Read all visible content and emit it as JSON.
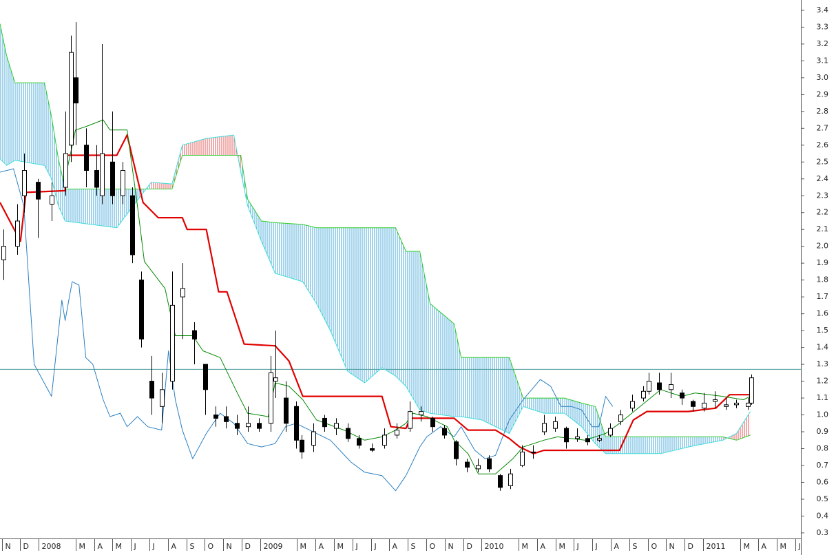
{
  "chart_data": {
    "type": "candlestick",
    "xlim": [
      -0.1,
      43.3
    ],
    "ylim": [
      0.267,
      3.461
    ],
    "xticks": [
      {
        "value": 0,
        "label": "N"
      },
      {
        "value": 1,
        "label": "D"
      },
      {
        "value": 2,
        "label": "2008"
      },
      {
        "value": 4,
        "label": "M"
      },
      {
        "value": 5,
        "label": "A"
      },
      {
        "value": 6,
        "label": "M"
      },
      {
        "value": 7,
        "label": "J"
      },
      {
        "value": 8,
        "label": "J"
      },
      {
        "value": 9,
        "label": "A"
      },
      {
        "value": 10,
        "label": "S"
      },
      {
        "value": 11,
        "label": "O"
      },
      {
        "value": 12,
        "label": "N"
      },
      {
        "value": 13,
        "label": "D"
      },
      {
        "value": 14,
        "label": "2009"
      },
      {
        "value": 16,
        "label": "M"
      },
      {
        "value": 17,
        "label": "A"
      },
      {
        "value": 18,
        "label": "M"
      },
      {
        "value": 19,
        "label": "J"
      },
      {
        "value": 20,
        "label": "J"
      },
      {
        "value": 21,
        "label": "A"
      },
      {
        "value": 22,
        "label": "S"
      },
      {
        "value": 23,
        "label": "O"
      },
      {
        "value": 24,
        "label": "N"
      },
      {
        "value": 25,
        "label": "D"
      },
      {
        "value": 26,
        "label": "2010"
      },
      {
        "value": 28,
        "label": "M"
      },
      {
        "value": 29,
        "label": "A"
      },
      {
        "value": 30,
        "label": "M"
      },
      {
        "value": 31,
        "label": "J"
      },
      {
        "value": 32,
        "label": "J"
      },
      {
        "value": 33,
        "label": "A"
      },
      {
        "value": 34,
        "label": "S"
      },
      {
        "value": 35,
        "label": "O"
      },
      {
        "value": 36,
        "label": "N"
      },
      {
        "value": 37,
        "label": "D"
      },
      {
        "value": 38,
        "label": "2011"
      },
      {
        "value": 40,
        "label": "M"
      },
      {
        "value": 41,
        "label": "A"
      },
      {
        "value": 42,
        "label": "M"
      },
      {
        "value": 43,
        "label": "J"
      }
    ],
    "yticks": [
      0.3,
      0.4,
      0.5,
      0.6,
      0.7,
      0.8,
      0.9,
      {
        "value": 1,
        "label": "1.0"
      },
      1.1,
      1.2,
      1.3,
      1.4,
      1.5,
      1.6,
      1.7,
      1.8,
      1.9,
      {
        "value": 2,
        "label": "2.0"
      },
      2.1,
      2.2,
      2.3,
      2.4,
      2.5,
      2.6,
      2.7,
      2.8,
      2.9,
      {
        "value": 3,
        "label": "3.0"
      },
      3.1,
      3.2,
      3.3,
      3.4
    ],
    "hline": {
      "value": 1.27,
      "color": "#4a9a9a"
    },
    "cloud": {
      "bull_color": "#4aa8d8",
      "bear_color": "#e05a5a",
      "span_a_color": "#2ecc2e",
      "span_b_color": "#3fdcdc",
      "x": [
        -0.1,
        0.26,
        0.71,
        2.31,
        2.69,
        3.06,
        3.43,
        6.23,
        6.98,
        8.1,
        9.22,
        9.78,
        11.08,
        12.57,
        12.95,
        13.32,
        14.07,
        14.81,
        16.31,
        17.05,
        17.8,
        18.73,
        19.66,
        20.6,
        21.34,
        21.9,
        22.65,
        23.21,
        24.51,
        24.89,
        26.01,
        27.5,
        28.25,
        29.37,
        30.49,
        31.42,
        32.16,
        32.72,
        35.71,
        37.2,
        39.07,
        39.81,
        40.56
      ],
      "span_a": [
        3.32,
        3.13,
        2.97,
        2.97,
        2.77,
        2.52,
        2.34,
        2.34,
        2.34,
        2.34,
        2.34,
        2.54,
        2.54,
        2.54,
        2.54,
        2.28,
        2.15,
        2.14,
        2.13,
        2.11,
        2.11,
        2.11,
        2.11,
        2.11,
        2.11,
        1.97,
        1.97,
        1.66,
        1.54,
        1.34,
        1.34,
        1.34,
        1.1,
        1.1,
        1.1,
        1.07,
        1.05,
        0.87,
        0.87,
        0.87,
        0.87,
        0.85,
        0.88
      ],
      "span_b": [
        2.52,
        2.48,
        2.51,
        2.48,
        2.4,
        2.24,
        2.15,
        2.11,
        2.22,
        2.38,
        2.37,
        2.6,
        2.64,
        2.66,
        2.44,
        2.24,
        2.03,
        1.84,
        1.79,
        1.66,
        1.5,
        1.26,
        1.19,
        1.28,
        1.23,
        1.17,
        1.03,
        1.01,
        0.99,
        0.99,
        0.97,
        0.89,
        1.05,
        1.01,
        1.01,
        0.93,
        0.83,
        0.77,
        0.77,
        0.81,
        0.85,
        0.89,
        1.02
      ]
    },
    "series": [
      {
        "color": "#2a7fc0",
        "x": [
          -0.1,
          0.63,
          1.19,
          1.75,
          2.69,
          3.25,
          3.43,
          3.81,
          4.18,
          4.55,
          4.93,
          5.49,
          5.86,
          6.42,
          6.79,
          7.35,
          7.91,
          8.66,
          9.03,
          9.4,
          9.78,
          10.34,
          11.08,
          11.83,
          12.57,
          13.32,
          14.07,
          14.81,
          15.37,
          15.93,
          16.68,
          17.8,
          18.92,
          19.66,
          20.6,
          21.34,
          21.9,
          22.65,
          23.03,
          23.77,
          24.51,
          24.89,
          25.63,
          26.19,
          26.75,
          27.5,
          28.25,
          29.18,
          29.74,
          30.3,
          30.86,
          31.42,
          31.98,
          32.35,
          32.72,
          33.1
        ],
        "values": [
          2.44,
          2.46,
          2.24,
          1.3,
          1.11,
          1.68,
          1.56,
          1.79,
          1.77,
          1.34,
          1.3,
          1.09,
          0.99,
          1.01,
          0.93,
          0.99,
          0.93,
          0.91,
          1.38,
          1.09,
          0.91,
          0.74,
          0.89,
          1.01,
          0.95,
          0.83,
          0.81,
          0.83,
          0.93,
          0.95,
          0.91,
          0.85,
          0.72,
          0.66,
          0.64,
          0.55,
          0.64,
          0.81,
          0.87,
          0.93,
          0.87,
          0.93,
          0.79,
          0.74,
          0.76,
          0.97,
          1.09,
          1.21,
          1.17,
          1.05,
          1.05,
          1.03,
          0.93,
          0.93,
          1.11,
          1.05
        ]
      },
      {
        "color": "#e00000",
        "x": [
          -0.1,
          1.01,
          1.31,
          3.43,
          3.51,
          6.23,
          6.79,
          7.65,
          8.47,
          9.78,
          10.04,
          11.08,
          11.75,
          12.2,
          13.13,
          14.81,
          15.56,
          16.31,
          20.6,
          21.08,
          21.9,
          22.13,
          24.51,
          25.26,
          26.75,
          27.5,
          28.06,
          28.81,
          29.37,
          33.47,
          34.22,
          34.96,
          37.2,
          38.69,
          39.44,
          40.56
        ],
        "values": [
          2.26,
          2.03,
          2.32,
          2.33,
          2.54,
          2.54,
          2.66,
          2.26,
          2.17,
          2.17,
          2.1,
          2.1,
          1.73,
          1.73,
          1.42,
          1.41,
          1.32,
          1.11,
          1.11,
          0.93,
          0.92,
          0.98,
          0.98,
          0.91,
          0.91,
          0.86,
          0.81,
          0.77,
          0.79,
          0.79,
          0.97,
          1.02,
          1.02,
          1.04,
          1.12,
          1.12
        ]
      },
      {
        "color": "#008800",
        "x": [
          3.43,
          3.99,
          4.55,
          5.49,
          5.86,
          6.79,
          7.35,
          7.72,
          8.84,
          9.4,
          10.34,
          10.9,
          11.83,
          12.76,
          13.32,
          14.44,
          14.81,
          15.56,
          16.31,
          17.05,
          18.54,
          19.66,
          20.6,
          21.34,
          21.9,
          22.28,
          23.03,
          24.14,
          24.51,
          25.26,
          25.82,
          26.75,
          27.69,
          28.25,
          29.37,
          30.11,
          31.6,
          32.72,
          33.47,
          34.59,
          35.71,
          36.83,
          37.57,
          39.07,
          40.19,
          40.56
        ],
        "values": [
          2.4,
          2.69,
          2.71,
          2.75,
          2.69,
          2.69,
          2.24,
          1.91,
          1.75,
          1.47,
          1.47,
          1.38,
          1.34,
          1.13,
          1.01,
          0.99,
          1.19,
          1.17,
          1.09,
          0.97,
          0.91,
          0.85,
          0.87,
          0.91,
          0.95,
          1.01,
          0.99,
          0.93,
          0.85,
          0.77,
          0.65,
          0.65,
          0.74,
          0.81,
          0.85,
          0.87,
          0.85,
          0.89,
          0.95,
          1.05,
          1.15,
          1.11,
          1.13,
          1.11,
          1.09,
          1.11
        ]
      }
    ],
    "candles": {
      "up_color": "#ffffff",
      "down_color": "#000000",
      "x": [
        0.07,
        0.82,
        1.19,
        1.94,
        2.69,
        3.43,
        3.73,
        3.99,
        4.55,
        5.11,
        5.41,
        5.97,
        6.53,
        7.05,
        7.54,
        8.1,
        8.66,
        9.22,
        9.78,
        10.41,
        11.01,
        11.57,
        12.13,
        12.72,
        13.32,
        13.92,
        14.55,
        14.81,
        15.37,
        15.93,
        16.23,
        16.87,
        17.46,
        18.1,
        18.73,
        19.33,
        20.04,
        20.71,
        21.38,
        22.09,
        22.69,
        23.32,
        23.96,
        24.59,
        25.19,
        25.78,
        26.38,
        26.98,
        27.57,
        28.17,
        28.77,
        29.37,
        29.96,
        30.56,
        31.16,
        31.75,
        32.35,
        32.95,
        33.54,
        34.14,
        34.74,
        35.04,
        35.63,
        36.23,
        36.83,
        37.43,
        38.02,
        38.62,
        39.22,
        39.81,
        40.41,
        40.63
      ],
      "open": [
        1.92,
        2.0,
        2.3,
        2.38,
        2.25,
        2.35,
        2.6,
        3.0,
        2.6,
        2.45,
        2.3,
        2.5,
        2.3,
        2.3,
        1.8,
        1.2,
        1.05,
        1.2,
        1.7,
        1.5,
        1.3,
        1.0,
        0.99,
        0.95,
        0.93,
        0.95,
        0.95,
        1.2,
        1.1,
        1.05,
        0.85,
        0.82,
        0.98,
        0.92,
        0.92,
        0.86,
        0.8,
        0.82,
        0.88,
        0.92,
        1.0,
        0.98,
        0.92,
        0.84,
        0.72,
        0.68,
        0.74,
        0.64,
        0.58,
        0.7,
        0.78,
        0.9,
        0.92,
        0.92,
        0.86,
        0.86,
        0.85,
        0.88,
        0.96,
        1.04,
        1.1,
        1.14,
        1.19,
        1.15,
        1.13,
        1.08,
        1.04,
        1.08,
        1.05,
        1.06,
        1.05,
        1.07
      ],
      "high": [
        2.1,
        2.25,
        2.55,
        2.4,
        2.38,
        2.8,
        3.25,
        3.33,
        2.7,
        2.6,
        3.2,
        2.8,
        2.5,
        2.35,
        1.85,
        1.35,
        1.25,
        1.85,
        1.9,
        1.55,
        1.3,
        1.05,
        1.05,
        1.0,
        1.05,
        0.98,
        1.35,
        1.5,
        1.2,
        1.08,
        0.88,
        0.95,
        1.0,
        0.98,
        0.95,
        0.88,
        0.83,
        0.92,
        0.95,
        1.08,
        1.05,
        0.99,
        0.94,
        0.85,
        0.74,
        0.74,
        0.76,
        0.65,
        0.68,
        0.82,
        0.82,
        1.0,
        0.99,
        0.93,
        0.92,
        0.88,
        0.88,
        0.95,
        1.03,
        1.12,
        1.17,
        1.25,
        1.25,
        1.25,
        1.15,
        1.09,
        1.13,
        1.14,
        1.1,
        1.09,
        1.1,
        1.24
      ],
      "low": [
        1.8,
        1.95,
        2.2,
        2.05,
        2.15,
        2.3,
        2.5,
        2.6,
        2.35,
        2.3,
        2.25,
        2.25,
        2.25,
        1.9,
        1.4,
        1.0,
        0.95,
        1.15,
        1.45,
        1.3,
        1.0,
        0.93,
        0.92,
        0.88,
        0.9,
        0.9,
        0.9,
        1.1,
        0.9,
        0.8,
        0.74,
        0.78,
        0.9,
        0.88,
        0.84,
        0.8,
        0.78,
        0.8,
        0.86,
        0.9,
        0.96,
        0.9,
        0.86,
        0.7,
        0.66,
        0.66,
        0.66,
        0.55,
        0.56,
        0.69,
        0.74,
        0.88,
        0.9,
        0.8,
        0.84,
        0.82,
        0.84,
        0.87,
        0.94,
        1.02,
        1.08,
        1.12,
        1.12,
        1.1,
        1.06,
        1.02,
        1.02,
        1.04,
        1.03,
        1.04,
        1.03,
        1.06
      ],
      "close": [
        2.0,
        2.15,
        2.45,
        2.28,
        2.3,
        2.55,
        3.15,
        2.85,
        2.45,
        2.35,
        2.55,
        2.3,
        2.45,
        1.95,
        1.45,
        1.1,
        1.15,
        1.65,
        1.75,
        1.45,
        1.15,
        0.98,
        0.96,
        0.92,
        0.95,
        0.92,
        1.25,
        1.22,
        0.95,
        0.85,
        0.78,
        0.9,
        0.93,
        0.95,
        0.86,
        0.82,
        0.79,
        0.88,
        0.91,
        1.02,
        1.02,
        0.93,
        0.88,
        0.74,
        0.69,
        0.7,
        0.68,
        0.57,
        0.65,
        0.78,
        0.78,
        0.95,
        0.96,
        0.84,
        0.87,
        0.84,
        0.86,
        0.92,
        1.0,
        1.08,
        1.14,
        1.2,
        1.15,
        1.18,
        1.1,
        1.05,
        1.07,
        1.09,
        1.06,
        1.07,
        1.07,
        1.22
      ]
    }
  }
}
